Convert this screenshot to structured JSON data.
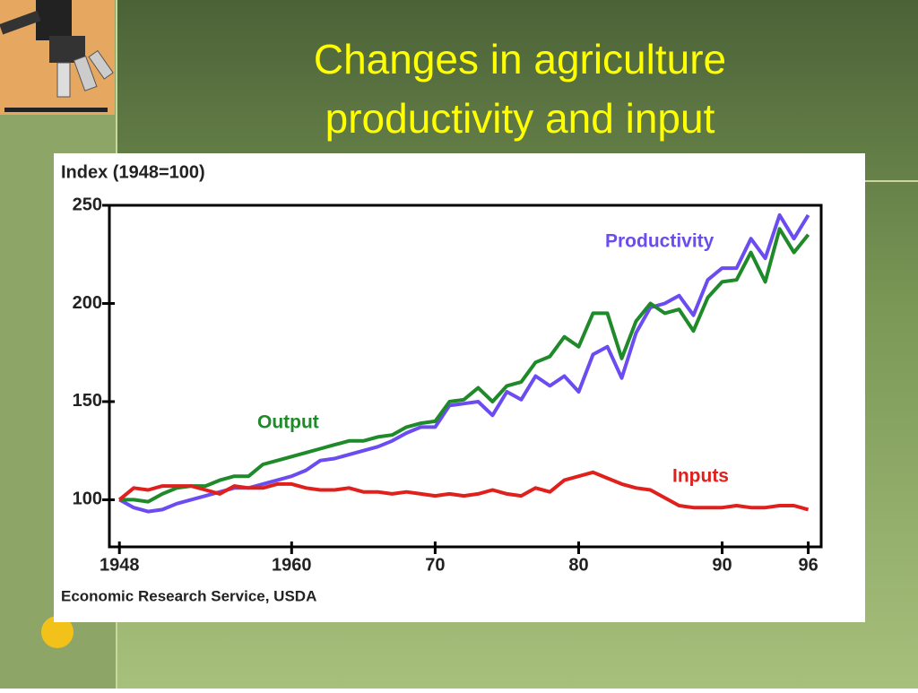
{
  "chart_data": {
    "type": "line",
    "title": "Changes in agriculture productivity and input",
    "y_label": "Index (1948=100)",
    "source": "Economic Research Service, USDA",
    "x": [
      1948,
      1949,
      1950,
      1951,
      1952,
      1953,
      1954,
      1955,
      1956,
      1957,
      1958,
      1959,
      1960,
      1961,
      1962,
      1963,
      1964,
      1965,
      1966,
      1967,
      1968,
      1969,
      1970,
      1971,
      1972,
      1973,
      1974,
      1975,
      1976,
      1977,
      1978,
      1979,
      1980,
      1981,
      1982,
      1983,
      1984,
      1985,
      1986,
      1987,
      1988,
      1989,
      1990,
      1991,
      1992,
      1993,
      1994,
      1995,
      1996
    ],
    "series": [
      {
        "name": "Productivity",
        "color": "#6a4cf0",
        "values": [
          100,
          96,
          94,
          95,
          98,
          100,
          102,
          104,
          106,
          106,
          108,
          110,
          112,
          115,
          120,
          121,
          123,
          125,
          127,
          130,
          134,
          137,
          137,
          148,
          149,
          150,
          143,
          155,
          151,
          163,
          158,
          163,
          155,
          174,
          178,
          162,
          185,
          198,
          200,
          204,
          194,
          212,
          218,
          218,
          233,
          223,
          245,
          233,
          245
        ]
      },
      {
        "name": "Output",
        "color": "#1f8a2a",
        "values": [
          100,
          100,
          99,
          103,
          106,
          107,
          107,
          110,
          112,
          112,
          118,
          120,
          122,
          124,
          126,
          128,
          130,
          130,
          132,
          133,
          137,
          139,
          140,
          150,
          151,
          157,
          150,
          158,
          160,
          170,
          173,
          183,
          178,
          195,
          195,
          172,
          191,
          200,
          195,
          197,
          186,
          203,
          211,
          212,
          226,
          211,
          238,
          226,
          235
        ]
      },
      {
        "name": "Inputs",
        "color": "#e0201c",
        "values": [
          100,
          106,
          105,
          107,
          107,
          107,
          105,
          103,
          107,
          106,
          106,
          108,
          108,
          106,
          105,
          105,
          106,
          104,
          104,
          103,
          104,
          103,
          102,
          103,
          102,
          103,
          105,
          103,
          102,
          106,
          104,
          110,
          112,
          114,
          111,
          108,
          106,
          105,
          101,
          97,
          96,
          96,
          96,
          97,
          96,
          96,
          97,
          97,
          95
        ]
      }
    ],
    "xlim": [
      1947.3,
      1996.9
    ],
    "xticks": [
      1948,
      1960,
      {
        "value": 1970,
        "label": "70"
      },
      {
        "value": 1980,
        "label": "80"
      },
      {
        "value": 1990,
        "label": "90"
      },
      {
        "value": 1996,
        "label": "96"
      }
    ],
    "ylim": [
      76,
      250
    ],
    "yticks": [
      100,
      150,
      200,
      250
    ]
  }
}
